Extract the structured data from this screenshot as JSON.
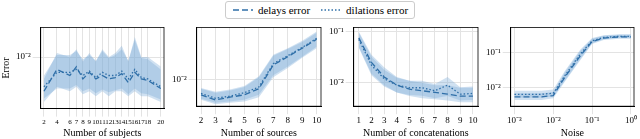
{
  "chart_data": [
    {
      "type": "line",
      "x_label": "Number of subjects",
      "y_label": "Error",
      "log": "y",
      "grid": true,
      "legend": "top",
      "x": [
        2,
        4,
        6,
        7,
        8,
        9,
        10,
        11,
        12,
        13,
        14,
        15,
        16,
        17,
        18,
        20
      ],
      "xlim": [
        1.5,
        20.5
      ],
      "xticks": [
        2,
        4,
        6,
        7,
        8,
        9,
        10,
        11,
        12,
        13,
        14,
        15,
        16,
        17,
        18,
        20
      ],
      "ylim": [
        0.003,
        0.02
      ],
      "yticks": [
        {
          "value": 0.01,
          "label": "10⁻²"
        }
      ],
      "series": [
        {
          "name": "delays error",
          "color": "#2f6fa8",
          "line_style": "dashed",
          "values": [
            0.0045,
            0.0075,
            0.0065,
            0.008,
            0.006,
            0.007,
            0.006,
            0.0065,
            0.006,
            0.0062,
            0.0068,
            0.0055,
            0.007,
            0.006,
            0.0058,
            0.0048
          ],
          "lower": [
            0.0035,
            0.005,
            0.0045,
            0.005,
            0.0042,
            0.0045,
            0.004,
            0.0045,
            0.004,
            0.0045,
            0.0045,
            0.004,
            0.0045,
            0.004,
            0.004,
            0.0035
          ],
          "upper": [
            0.006,
            0.011,
            0.01,
            0.012,
            0.009,
            0.011,
            0.009,
            0.012,
            0.01,
            0.011,
            0.013,
            0.009,
            0.016,
            0.01,
            0.01,
            0.008
          ]
        },
        {
          "name": "dilations error",
          "color": "#2f6fa8",
          "line_style": "dotted",
          "values": [
            0.005,
            0.007,
            0.007,
            0.0075,
            0.0065,
            0.0072,
            0.0062,
            0.007,
            0.0065,
            0.0065,
            0.0072,
            0.006,
            0.0075,
            0.0062,
            0.006,
            0.005
          ],
          "lower": [
            0.0038,
            0.0048,
            0.0048,
            0.0052,
            0.0045,
            0.0048,
            0.0043,
            0.0047,
            0.0044,
            0.0046,
            0.0048,
            0.0042,
            0.0048,
            0.0043,
            0.0042,
            0.0037
          ],
          "upper": [
            0.0065,
            0.0105,
            0.0105,
            0.0115,
            0.0095,
            0.0105,
            0.0092,
            0.0115,
            0.0098,
            0.0105,
            0.012,
            0.0092,
            0.015,
            0.0098,
            0.0095,
            0.0075
          ]
        }
      ]
    },
    {
      "type": "line",
      "x_label": "Number of sources",
      "log": "y",
      "grid": true,
      "x": [
        2,
        3,
        4,
        5,
        6,
        7,
        8,
        9,
        10
      ],
      "xlim": [
        1.7,
        10.3
      ],
      "xticks": [
        2,
        3,
        4,
        5,
        6,
        7,
        8,
        9,
        10
      ],
      "ylim": [
        0.0035,
        0.08
      ],
      "yticks": [
        {
          "value": 0.01,
          "label": "10⁻²"
        }
      ],
      "series": [
        {
          "name": "delays error",
          "color": "#2f6fa8",
          "line_style": "dashed",
          "values": [
            0.0055,
            0.0045,
            0.005,
            0.0055,
            0.007,
            0.018,
            0.025,
            0.035,
            0.05
          ],
          "lower": [
            0.0045,
            0.0038,
            0.004,
            0.0042,
            0.005,
            0.011,
            0.016,
            0.024,
            0.035
          ],
          "upper": [
            0.007,
            0.006,
            0.0065,
            0.0075,
            0.011,
            0.026,
            0.034,
            0.045,
            0.065
          ]
        },
        {
          "name": "dilations error",
          "color": "#2f6fa8",
          "line_style": "dotted",
          "values": [
            0.0058,
            0.0048,
            0.0052,
            0.006,
            0.0075,
            0.019,
            0.026,
            0.036,
            0.052
          ],
          "lower": [
            0.0047,
            0.004,
            0.0042,
            0.0045,
            0.0055,
            0.012,
            0.017,
            0.025,
            0.037
          ],
          "upper": [
            0.0072,
            0.0062,
            0.0068,
            0.0078,
            0.0115,
            0.027,
            0.035,
            0.047,
            0.068
          ]
        }
      ]
    },
    {
      "type": "line",
      "x_label": "Number of concatenations",
      "log": "y",
      "grid": true,
      "x": [
        1,
        2,
        3,
        4,
        5,
        6,
        7,
        8,
        9,
        10
      ],
      "xlim": [
        0.6,
        10.4
      ],
      "xticks": [
        1,
        2,
        3,
        4,
        5,
        6,
        7,
        8,
        9,
        10
      ],
      "ylim": [
        0.0035,
        0.12
      ],
      "yticks": [
        {
          "value": 0.01,
          "label": "10⁻²"
        },
        {
          "value": 0.1,
          "label": "10⁻¹"
        }
      ],
      "series": [
        {
          "name": "delays error",
          "color": "#2f6fa8",
          "line_style": "dashed",
          "values": [
            0.075,
            0.025,
            0.013,
            0.009,
            0.0075,
            0.007,
            0.0065,
            0.006,
            0.0055,
            0.0055
          ],
          "lower": [
            0.05,
            0.015,
            0.009,
            0.0065,
            0.0055,
            0.005,
            0.0048,
            0.0045,
            0.0042,
            0.0042
          ],
          "upper": [
            0.1,
            0.035,
            0.02,
            0.013,
            0.011,
            0.01,
            0.009,
            0.009,
            0.008,
            0.008
          ]
        },
        {
          "name": "dilations error",
          "color": "#2f6fa8",
          "line_style": "dotted",
          "values": [
            0.07,
            0.022,
            0.012,
            0.009,
            0.008,
            0.008,
            0.007,
            0.009,
            0.006,
            0.0062
          ],
          "lower": [
            0.048,
            0.014,
            0.0085,
            0.0065,
            0.0058,
            0.0056,
            0.005,
            0.0055,
            0.0045,
            0.0046
          ],
          "upper": [
            0.095,
            0.032,
            0.018,
            0.0125,
            0.011,
            0.011,
            0.0095,
            0.013,
            0.0082,
            0.0085
          ]
        }
      ]
    },
    {
      "type": "line",
      "x_label": "Noise",
      "log": true,
      "grid": true,
      "x": [
        0.001,
        0.002,
        0.005,
        0.01,
        0.02,
        0.05,
        0.1,
        0.2,
        0.5,
        1
      ],
      "xlim": [
        0.0008,
        1.2
      ],
      "xticks": [
        {
          "value": 0.001,
          "label": "10⁻³"
        },
        {
          "value": 0.01,
          "label": "10⁻²"
        },
        {
          "value": 0.1,
          "label": "10⁻¹"
        },
        {
          "value": 1,
          "label": "10⁰"
        }
      ],
      "ylim": [
        0.003,
        0.5
      ],
      "yticks": [
        {
          "value": 0.01,
          "label": "10⁻²"
        },
        {
          "value": 0.1,
          "label": "10⁻¹"
        }
      ],
      "series": [
        {
          "name": "delays error",
          "color": "#2f6fa8",
          "line_style": "dashed",
          "values": [
            0.0055,
            0.0055,
            0.0055,
            0.006,
            0.02,
            0.08,
            0.2,
            0.25,
            0.27,
            0.27
          ],
          "lower": [
            0.0045,
            0.0045,
            0.0045,
            0.005,
            0.015,
            0.06,
            0.17,
            0.22,
            0.24,
            0.24
          ],
          "upper": [
            0.007,
            0.007,
            0.007,
            0.0075,
            0.027,
            0.11,
            0.24,
            0.29,
            0.31,
            0.31
          ]
        },
        {
          "name": "dilations error",
          "color": "#2f6fa8",
          "line_style": "dotted",
          "values": [
            0.0065,
            0.0065,
            0.0065,
            0.007,
            0.022,
            0.09,
            0.21,
            0.26,
            0.28,
            0.28
          ],
          "lower": [
            0.0052,
            0.0052,
            0.0052,
            0.0056,
            0.016,
            0.065,
            0.18,
            0.23,
            0.25,
            0.25
          ],
          "upper": [
            0.0082,
            0.0082,
            0.0082,
            0.0088,
            0.03,
            0.12,
            0.25,
            0.3,
            0.32,
            0.32
          ]
        }
      ]
    }
  ]
}
